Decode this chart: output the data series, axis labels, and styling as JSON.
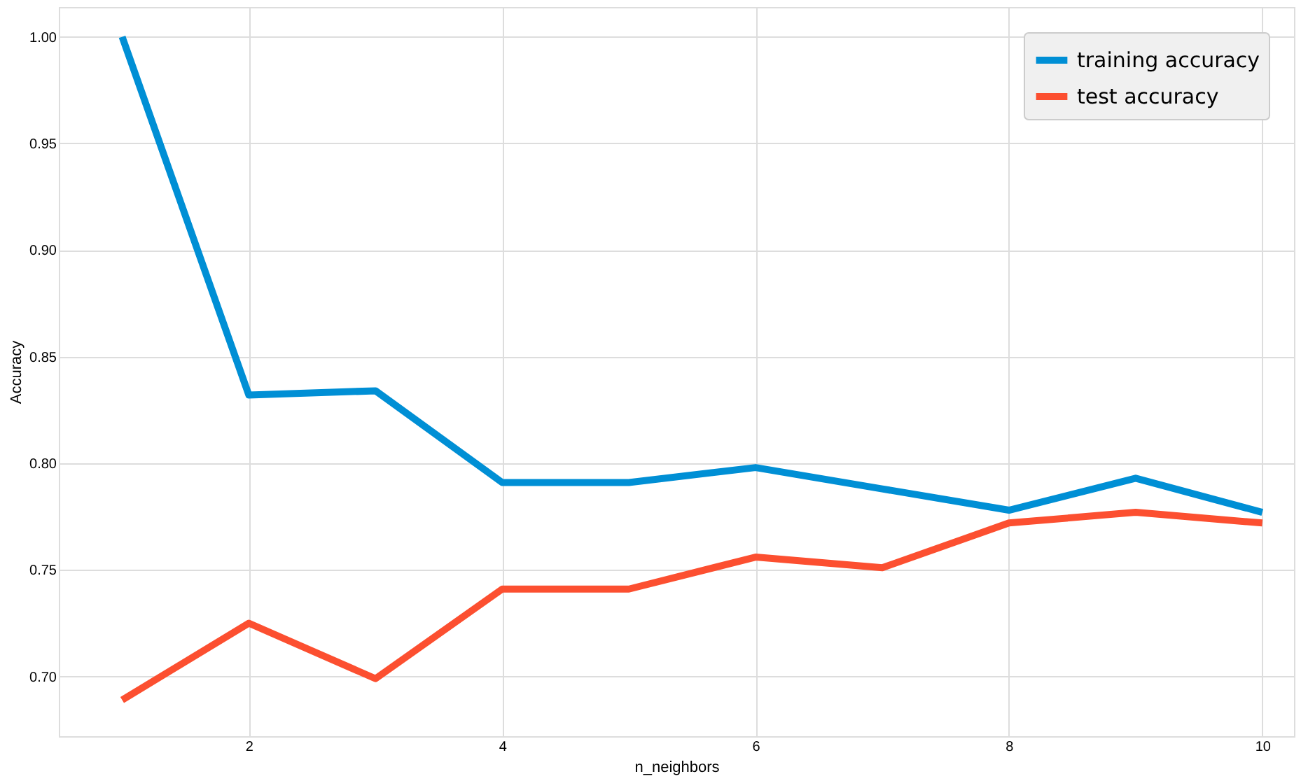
{
  "chart_data": {
    "type": "line",
    "xlabel": "n_neighbors",
    "ylabel": "Accuracy",
    "x": [
      1,
      2,
      3,
      4,
      5,
      6,
      7,
      8,
      9,
      10
    ],
    "series": [
      {
        "name": "training accuracy",
        "color": "#008fd5",
        "values": [
          1.0,
          0.832,
          0.834,
          0.791,
          0.791,
          0.798,
          0.788,
          0.778,
          0.793,
          0.777
        ]
      },
      {
        "name": "test accuracy",
        "color": "#fc4f30",
        "values": [
          0.689,
          0.725,
          0.699,
          0.741,
          0.741,
          0.756,
          0.751,
          0.772,
          0.777,
          0.772
        ]
      }
    ],
    "xlim": [
      0.5,
      10.25
    ],
    "xticks": [
      2,
      4,
      6,
      8,
      10
    ],
    "ylim": [
      0.672,
      1.014
    ],
    "yticks": [
      {
        "value": 0.7,
        "label": "0.70"
      },
      0.75,
      {
        "value": 0.8,
        "label": "0.80"
      },
      0.85,
      {
        "value": 0.9,
        "label": "0.90"
      },
      0.95,
      {
        "value": 1.0,
        "label": "1.00"
      }
    ],
    "grid": true,
    "legend": "top right",
    "marker": "none",
    "line_style": "solid"
  }
}
